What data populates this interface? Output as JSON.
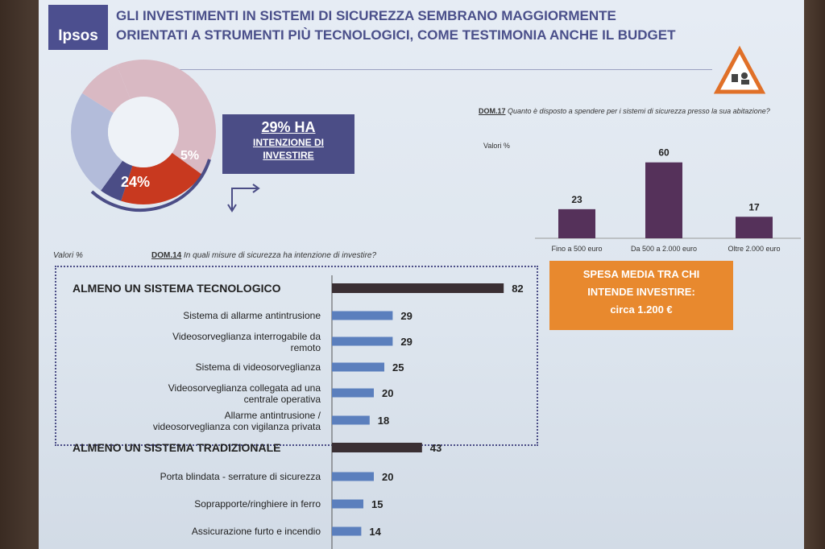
{
  "header": {
    "logo_text": "Ipsos",
    "title_line1": "GLI INVESTIMENTI IN SISTEMI DI SICUREZZA SEMBRANO MAGGIORMENTE",
    "title_line2": "ORIENTATI A STRUMENTI PIÙ TECNOLOGICI, COME TESTIMONIA ANCHE IL BUDGET",
    "warning_icon": "warning-triangle-icon"
  },
  "donut": {
    "label_24": "24%",
    "label_5": "5%",
    "colors": [
      "#d9b9c3",
      "#c8391f",
      "#4b4d86",
      "#b3bcda"
    ]
  },
  "info_box": {
    "big": "29% HA",
    "line1": "INTENZIONE DI",
    "line2": "INVESTIRE"
  },
  "q17": {
    "code": "DOM.17",
    "text": "Quanto è disposto a spendere per i sistemi di sicurezza presso la sua abitazione?",
    "values_label": "Valori %"
  },
  "spesa_box": {
    "line1": "SPESA MEDIA TRA CHI",
    "line2": "INTENDE INVESTIRE:",
    "amount": "circa 1.200 €"
  },
  "q14": {
    "values_label": "Valori %",
    "code": "DOM.14",
    "text": "In quali misure di sicurezza ha intenzione di investire?"
  },
  "chart_data": [
    {
      "type": "bar",
      "categories": [
        "Fino a 500 euro",
        "Da 500 a 2.000 euro",
        "Oltre 2.000 euro"
      ],
      "values": [
        23,
        60,
        17
      ],
      "ylabel": "Valori %",
      "bar_color": "#55315a"
    },
    {
      "type": "bar",
      "orientation": "horizontal",
      "categories": [
        "ALMENO UN SISTEMA TECNOLOGICO",
        "Sistema di allarme antintrusione",
        "Videosorveglianza interrogabile da remoto",
        "Sistema di videosorveglianza",
        "Videosorveglianza collegata ad una centrale operativa",
        "Allarme antintrusione / videosorveglianza con vigilanza privata",
        "ALMENO UN SISTEMA TRADIZIONALE",
        "Porta blindata - serrature di sicurezza",
        "Soprapporte/ringhiere in ferro",
        "Assicurazione furto e incendio"
      ],
      "values": [
        82,
        29,
        29,
        25,
        20,
        18,
        43,
        20,
        15,
        14
      ],
      "headline": [
        true,
        false,
        false,
        false,
        false,
        false,
        true,
        false,
        false,
        false
      ],
      "xlabel": "Valori %",
      "colors": {
        "headline": "#3a2f33",
        "item": "#5b7fbd"
      }
    }
  ]
}
